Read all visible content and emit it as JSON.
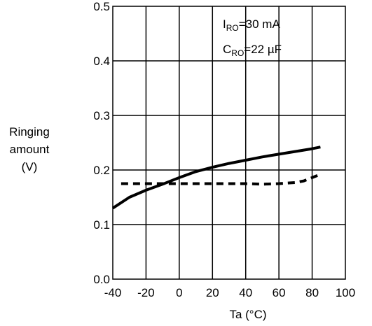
{
  "chart_data": {
    "type": "line",
    "xlabel": "Ta (°C)",
    "ylabel_lines": [
      "Ringing",
      "amount",
      "(V)"
    ],
    "x_ticks": [
      "-40",
      "-20",
      "0",
      "20",
      "40",
      "60",
      "80",
      "100"
    ],
    "y_ticks": [
      "0.0",
      "0.1",
      "0.2",
      "0.3",
      "0.4",
      "0.5"
    ],
    "xlim": [
      -40,
      100
    ],
    "ylim": [
      0.0,
      0.5
    ],
    "grid": true,
    "annotations": {
      "line1": {
        "main": "I",
        "sub": "RO",
        "rest": "=30 mA"
      },
      "line2": {
        "main": "C",
        "sub": "RO",
        "rest": "=22 µF"
      }
    },
    "series": [
      {
        "style": "solid",
        "color": "#000000",
        "x": [
          -40,
          -30,
          -20,
          -10,
          0,
          10,
          20,
          30,
          40,
          50,
          60,
          70,
          80,
          85
        ],
        "y": [
          0.13,
          0.15,
          0.163,
          0.174,
          0.186,
          0.197,
          0.205,
          0.212,
          0.218,
          0.224,
          0.229,
          0.234,
          0.239,
          0.242
        ]
      },
      {
        "style": "dashed",
        "color": "#000000",
        "x": [
          -35,
          -20,
          0,
          20,
          40,
          50,
          60,
          70,
          75,
          80,
          85
        ],
        "y": [
          0.175,
          0.175,
          0.175,
          0.175,
          0.175,
          0.174,
          0.175,
          0.177,
          0.18,
          0.186,
          0.192
        ]
      }
    ]
  }
}
